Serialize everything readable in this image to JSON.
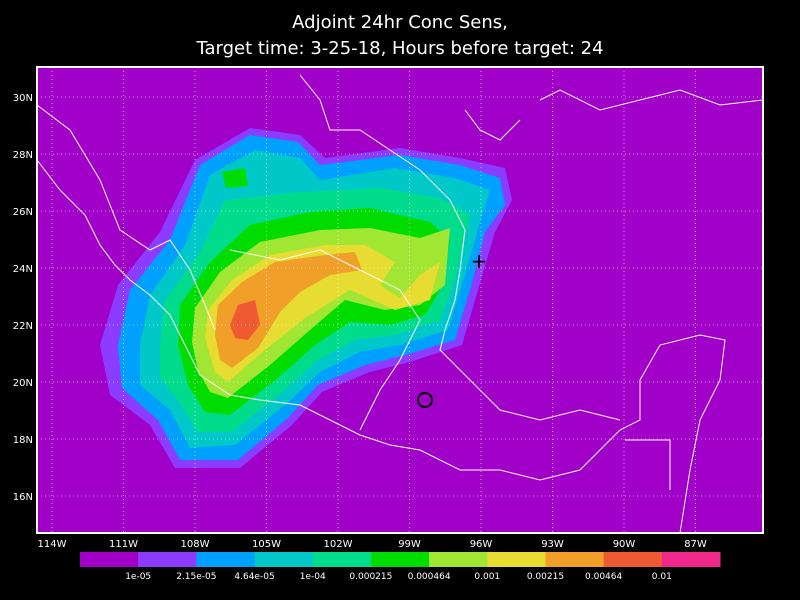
{
  "title": [
    "Adjoint 24hr Conc Sens,",
    "Target time: 3-25-18, Hours before target: 24"
  ],
  "lat_labels": [
    "30N",
    "28N",
    "26N",
    "24N",
    "22N",
    "20N",
    "18N",
    "16N"
  ],
  "lon_labels": [
    "114W",
    "111W",
    "108W",
    "105W",
    "102W",
    "99W",
    "96W",
    "93W",
    "90W",
    "87W"
  ],
  "colorbar": {
    "colors": [
      "#a000c8",
      "#8c3cff",
      "#00a0ff",
      "#00c8c8",
      "#00dc8c",
      "#00dc00",
      "#a0e632",
      "#e6dc32",
      "#f0a028",
      "#f05a32",
      "#f0288c"
    ],
    "labels": [
      "1e-05",
      "2.15e-05",
      "4.64e-05",
      "1e-04",
      "0.000215",
      "0.000464",
      "0.001",
      "0.00215",
      "0.00464",
      "0.01"
    ]
  }
}
